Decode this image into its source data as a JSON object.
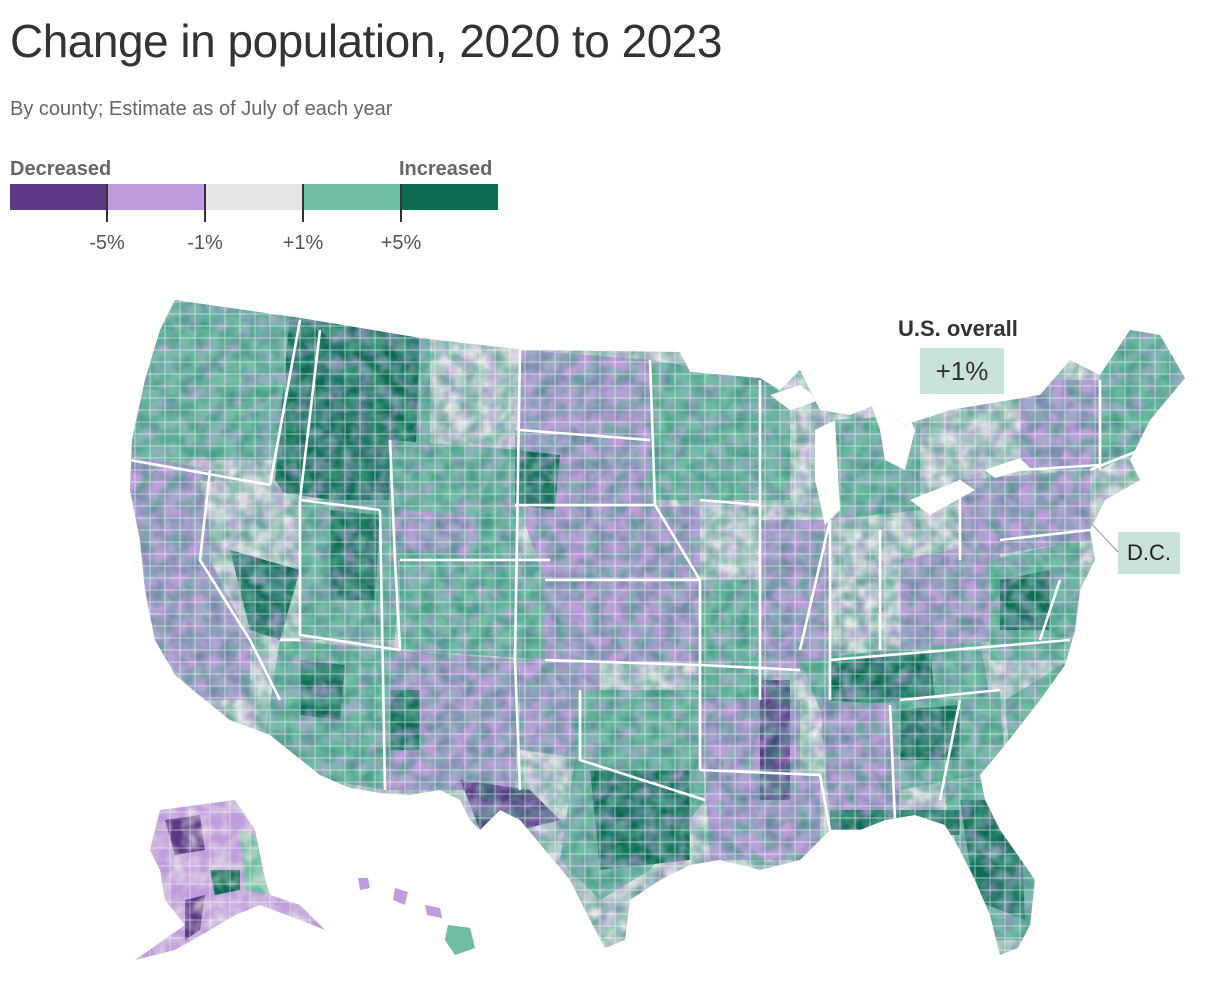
{
  "title": "Change in population, 2020 to 2023",
  "subtitle": "By county; Estimate as of July of each year",
  "legend": {
    "low_label": "Decreased",
    "high_label": "Increased",
    "ticks": [
      "-5%",
      "-1%",
      "+1%",
      "+5%"
    ],
    "colors": [
      "#5c3a86",
      "#bf9ddc",
      "#e5e5e5",
      "#6fbda3",
      "#0e6b54"
    ]
  },
  "callouts": {
    "overall_label": "U.S. overall",
    "overall_value": "+1%",
    "dc_label": "D.C."
  }
}
